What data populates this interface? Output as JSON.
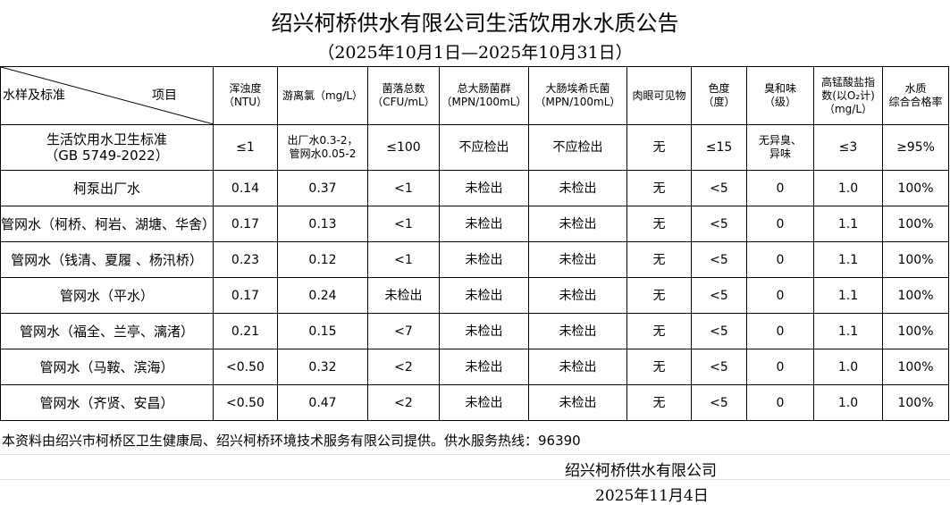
{
  "title": "绍兴柯桥供水有限公司生活饮用水水质公告",
  "subtitle": "（2025年10月1日—2025年10月31日）",
  "header": {
    "corner_left": "水样及标准",
    "corner_right": "项目",
    "columns": [
      [
        "浑浊度",
        "（NTU）"
      ],
      [
        "游离氯（mg/L）"
      ],
      [
        "菌落总数",
        "（CFU/mL）"
      ],
      [
        "总大肠菌群",
        "（MPN/100mL）"
      ],
      [
        "大肠埃希氏菌",
        "（MPN/100mL）"
      ],
      [
        "肉眼可见物"
      ],
      [
        "色度",
        "（度）"
      ],
      [
        "臭和味",
        "（级）"
      ],
      [
        "高锰酸盐指",
        "数(以O₂计)",
        "（mg/L）"
      ],
      [
        "水质",
        "综合合格率"
      ]
    ]
  },
  "standard": {
    "name": [
      "生活饮用水卫生标准",
      "（GB 5749-2022）"
    ],
    "values": [
      [
        "≤1"
      ],
      [
        "出厂水0.3-2，",
        "管网水0.05-2"
      ],
      [
        "≤100"
      ],
      [
        "不应检出"
      ],
      [
        "不应检出"
      ],
      [
        "无"
      ],
      [
        "≤15"
      ],
      [
        "无异臭、",
        "异味"
      ],
      [
        "≤3"
      ],
      [
        "≥95%"
      ]
    ]
  },
  "rows": [
    {
      "name": "柯泵出厂水",
      "values": [
        "0.14",
        "0.37",
        "<1",
        "未检出",
        "未检出",
        "无",
        "<5",
        "0",
        "1.0",
        "100%"
      ]
    },
    {
      "name": "管网水（柯桥、柯岩、湖塘、华舍）",
      "values": [
        "0.17",
        "0.13",
        "<1",
        "未检出",
        "未检出",
        "无",
        "<5",
        "0",
        "1.1",
        "100%"
      ]
    },
    {
      "name": "管网水（钱清、夏履 、杨汛桥）",
      "values": [
        "0.23",
        "0.12",
        "<1",
        "未检出",
        "未检出",
        "无",
        "<5",
        "0",
        "1.1",
        "100%"
      ]
    },
    {
      "name": "管网水（平水）",
      "values": [
        "0.17",
        "0.24",
        "未检出",
        "未检出",
        "未检出",
        "无",
        "<5",
        "0",
        "1.1",
        "100%"
      ]
    },
    {
      "name": "管网水（福全、兰亭、漓渚）",
      "values": [
        "0.21",
        "0.15",
        "<7",
        "未检出",
        "未检出",
        "无",
        "<5",
        "0",
        "1.1",
        "100%"
      ]
    },
    {
      "name": "管网水（马鞍、滨海）",
      "values": [
        "<0.50",
        "0.32",
        "<2",
        "未检出",
        "未检出",
        "无",
        "<5",
        "0",
        "1.0",
        "100%"
      ]
    },
    {
      "name": "管网水（齐贤、安昌）",
      "values": [
        "<0.50",
        "0.47",
        "<2",
        "未检出",
        "未检出",
        "无",
        "<5",
        "0",
        "1.0",
        "100%"
      ]
    }
  ],
  "footer": {
    "note": "本资料由绍兴市柯桥区卫生健康局、绍兴柯桥环境技术服务有限公司提供。供水服务热线：96390",
    "company": "绍兴柯桥供水有限公司",
    "date": "2025年11月4日"
  }
}
